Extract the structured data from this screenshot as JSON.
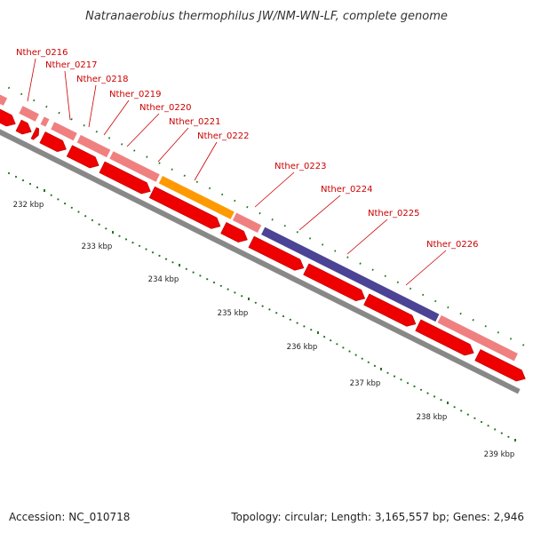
{
  "title": "Natranaerobius thermophilus JW/NM-WN-LF, complete genome",
  "footer": {
    "accession": "Accession: NC_010718",
    "topology": "Topology: circular; Length: 3,165,557 bp; Genes: 2,946"
  },
  "colors": {
    "cds": "#ee0000",
    "gene": "#f08080",
    "highlight_orange": "#ff9900",
    "highlight_purple": "#4b4494",
    "backbone": "#888888",
    "tick": "#227722",
    "label": "#cc0000"
  },
  "scale_labels": [
    "232 kbp",
    "233 kbp",
    "234 kbp",
    "235 kbp",
    "236 kbp",
    "237 kbp",
    "238 kbp",
    "239 kbp"
  ],
  "gene_labels": [
    "Nther_0216",
    "Nther_0217",
    "Nther_0218",
    "Nther_0219",
    "Nther_0220",
    "Nther_0221",
    "Nther_0222",
    "Nther_0223",
    "Nther_0224",
    "Nther_0225",
    "Nther_0226"
  ]
}
